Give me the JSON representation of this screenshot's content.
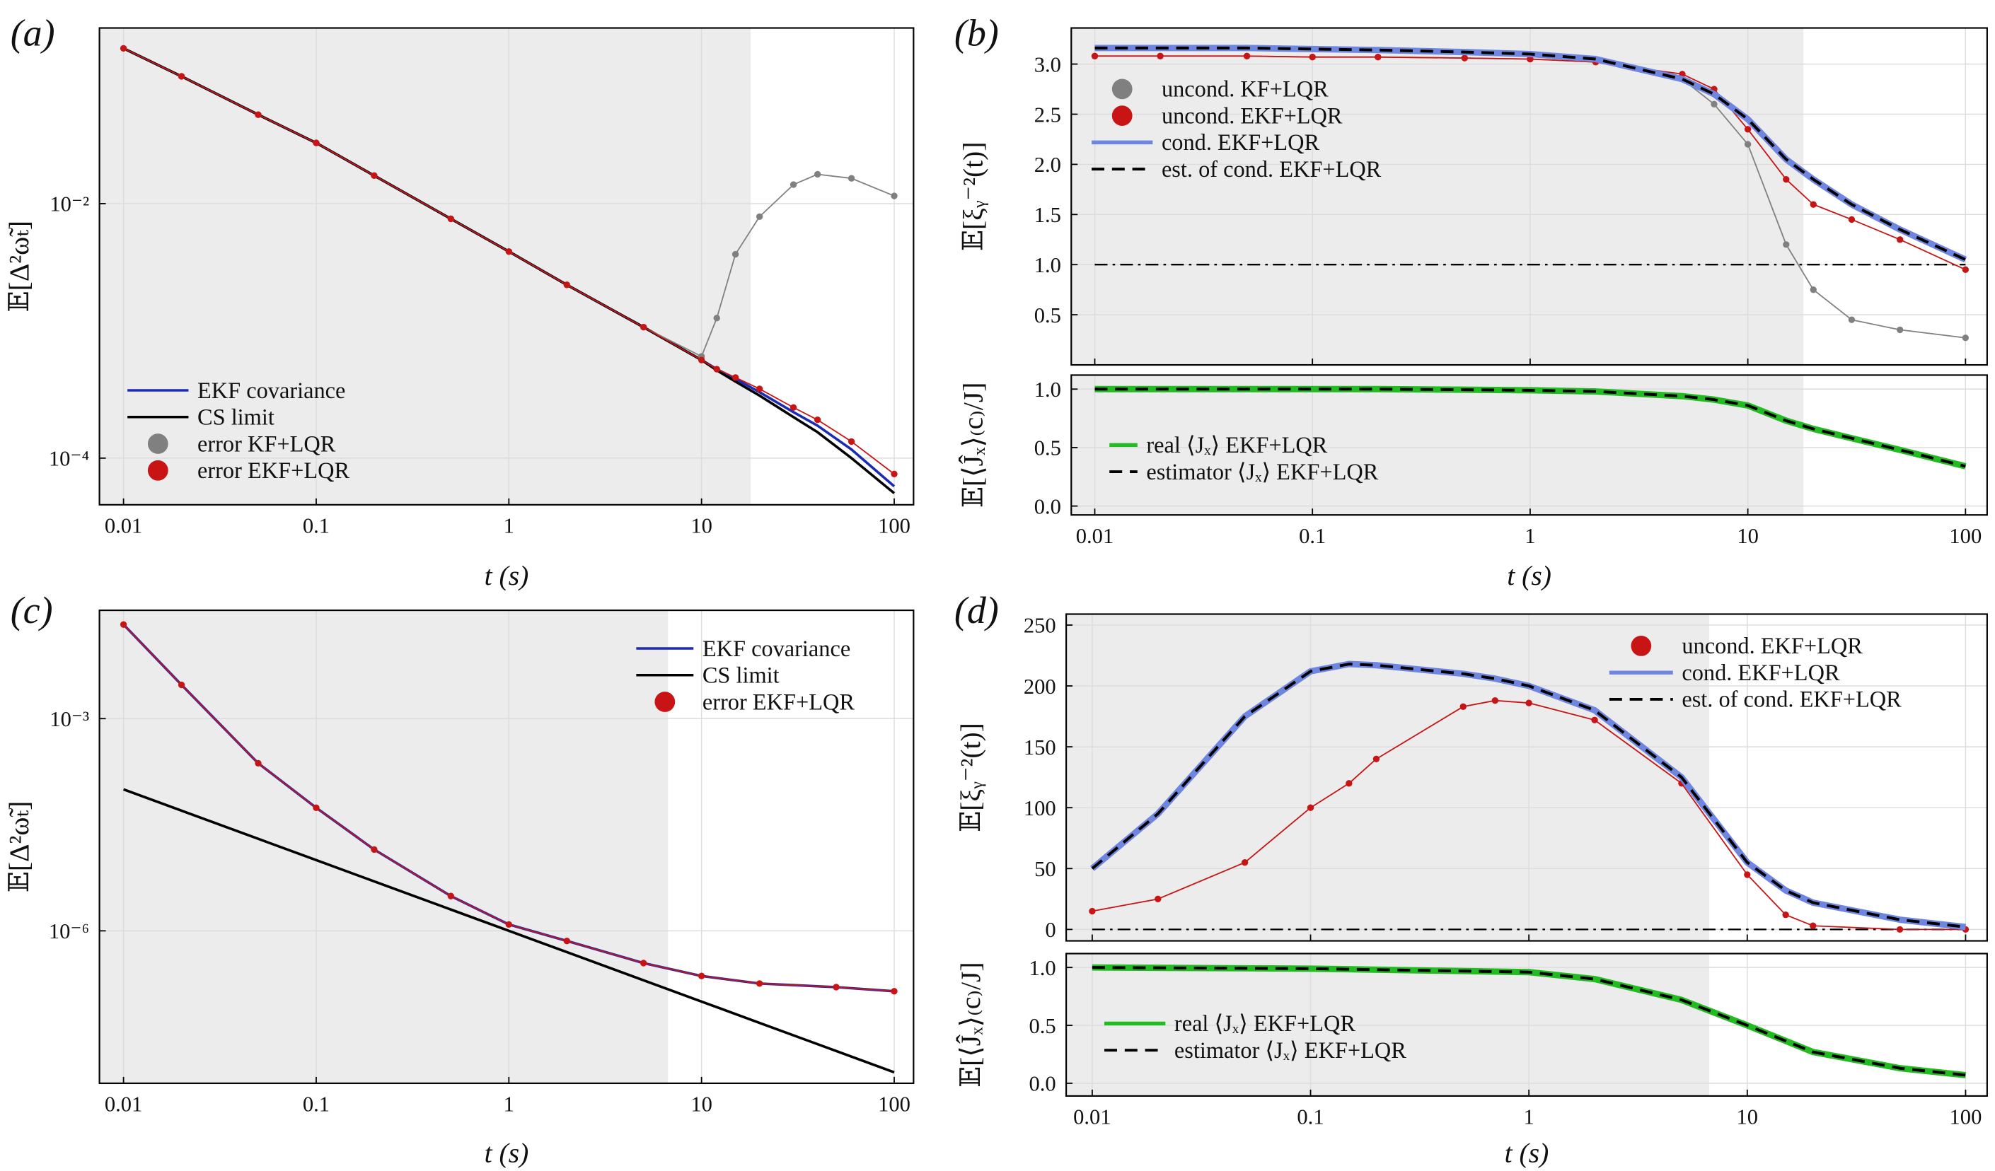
{
  "chart_data": [
    {
      "type": "line",
      "panel": "(a)",
      "xlog": true,
      "ylog": true,
      "grid": true,
      "shade_until": 18,
      "xlabel": "t (s)",
      "ylabel": "𝔼[Δ²ω̃ₜ]",
      "legend": "lower left",
      "xlim": [
        0.0075,
        126
      ],
      "ylim": [
        4.3e-05,
        0.24
      ],
      "xticks": [
        0.01,
        0.1,
        1,
        10,
        100
      ],
      "yticks": [
        {
          "value": 0.01,
          "label": "10⁻²"
        },
        {
          "value": 0.0001,
          "label": "10⁻⁴"
        }
      ],
      "x": [
        0.01,
        0.02,
        0.05,
        0.1,
        0.2,
        0.5,
        1,
        2,
        5,
        10,
        12,
        15,
        20,
        30,
        40,
        60,
        100
      ],
      "series": [
        {
          "name": "EKF covariance",
          "color": "#1c2bb5",
          "style": "line",
          "values": [
            0.166,
            0.1,
            0.05,
            0.03,
            0.0166,
            0.0076,
            0.0042,
            0.0023,
            0.00107,
            0.00059,
            0.0005,
            0.00042,
            0.00033,
            0.00023,
            0.00018,
            0.000117,
            6e-05
          ]
        },
        {
          "name": "CS limit",
          "color": "#000000",
          "style": "line",
          "values": [
            0.166,
            0.1,
            0.05,
            0.03,
            0.0166,
            0.0076,
            0.0042,
            0.0023,
            0.00107,
            0.00059,
            0.00049,
            0.0004,
            0.00031,
            0.00021,
            0.00016,
            0.0001,
            5.3e-05
          ]
        },
        {
          "name": "error KF+LQR",
          "color": "#808080",
          "style": "markers",
          "values": [
            0.166,
            0.1,
            0.05,
            0.03,
            0.0166,
            0.0076,
            0.0042,
            0.0023,
            0.00107,
            0.00063,
            0.00126,
            0.004,
            0.0079,
            0.0141,
            0.017,
            0.0158,
            0.0115
          ]
        },
        {
          "name": "error EKF+LQR",
          "color": "#c81414",
          "style": "markers",
          "values": [
            0.166,
            0.1,
            0.05,
            0.03,
            0.0166,
            0.0076,
            0.0042,
            0.0023,
            0.00107,
            0.00059,
            0.0005,
            0.00043,
            0.00035,
            0.00025,
            0.0002,
            0.000135,
            7.5e-05
          ]
        }
      ]
    },
    {
      "type": "line",
      "panel": "(b)",
      "xlog": true,
      "ylog": false,
      "grid": true,
      "shade_until": 18,
      "ylabel": "𝔼[ξᵧ⁻²(t)]",
      "legend": "upper left",
      "hline": 1,
      "xlim": [
        0.0078,
        125.7
      ],
      "ylim": [
        0,
        3.36
      ],
      "xticks": [
        0.01,
        0.1,
        1,
        10,
        100
      ],
      "yticks": [
        {
          "value": 3,
          "label": "3.0"
        },
        2.5,
        {
          "value": 2,
          "label": "2.0"
        },
        1.5,
        {
          "value": 1,
          "label": "1.0"
        },
        0.5
      ],
      "x": [
        0.01,
        0.02,
        0.05,
        0.1,
        0.2,
        0.5,
        1,
        2,
        5,
        7,
        10,
        15,
        20,
        30,
        50,
        100
      ],
      "series": [
        {
          "name": "uncond. KF+LQR",
          "color": "#808080",
          "style": "markers",
          "values": [
            3.08,
            3.08,
            3.08,
            3.07,
            3.07,
            3.06,
            3.05,
            3.02,
            2.85,
            2.6,
            2.2,
            1.2,
            0.75,
            0.45,
            0.35,
            0.27
          ]
        },
        {
          "name": "uncond. EKF+LQR",
          "color": "#c81414",
          "style": "markers",
          "values": [
            3.08,
            3.08,
            3.08,
            3.07,
            3.07,
            3.06,
            3.05,
            3.02,
            2.9,
            2.75,
            2.35,
            1.85,
            1.6,
            1.45,
            1.25,
            0.95
          ]
        },
        {
          "name": "cond. EKF+LQR",
          "color": "#6f86e0",
          "style": "thick",
          "values": [
            3.16,
            3.16,
            3.16,
            3.15,
            3.14,
            3.12,
            3.1,
            3.05,
            2.85,
            2.7,
            2.45,
            2.05,
            1.85,
            1.6,
            1.35,
            1.05
          ]
        },
        {
          "name": "est. of cond. EKF+LQR",
          "color": "#000000",
          "style": "dashed",
          "values": [
            3.16,
            3.16,
            3.16,
            3.15,
            3.14,
            3.12,
            3.1,
            3.05,
            2.85,
            2.7,
            2.45,
            2.05,
            1.85,
            1.6,
            1.35,
            1.05
          ]
        }
      ]
    },
    {
      "type": "line",
      "xlog": true,
      "ylog": false,
      "grid": true,
      "shade_until": 18,
      "xlabel": "t (s)",
      "ylabel": "𝔼[⟨Ĵₓ⟩₍c₎/J]",
      "legend": "lower left",
      "xlim": [
        0.0078,
        125.7
      ],
      "ylim": [
        -0.076,
        1.12
      ],
      "xticks": [
        0.01,
        0.1,
        1,
        10,
        100
      ],
      "yticks": [
        {
          "value": 0,
          "label": "0.0"
        },
        0.5,
        {
          "value": 1,
          "label": "1.0"
        }
      ],
      "x": [
        0.01,
        0.02,
        0.05,
        0.1,
        0.2,
        0.5,
        1,
        2,
        5,
        7,
        10,
        15,
        20,
        30,
        50,
        100
      ],
      "series": [
        {
          "name": "real ⟨Jₓ⟩ EKF+LQR",
          "color": "#22bb22",
          "style": "thick",
          "values": [
            1,
            1,
            1,
            1,
            1,
            0.995,
            0.99,
            0.98,
            0.94,
            0.91,
            0.86,
            0.73,
            0.66,
            0.58,
            0.48,
            0.34
          ]
        },
        {
          "name": "estimator ⟨Jₓ⟩ EKF+LQR",
          "color": "#000000",
          "style": "dashed",
          "values": [
            1,
            1,
            1,
            1,
            1,
            0.995,
            0.99,
            0.98,
            0.94,
            0.91,
            0.86,
            0.73,
            0.66,
            0.58,
            0.48,
            0.34
          ]
        }
      ]
    },
    {
      "type": "line",
      "panel": "(c)",
      "xlog": true,
      "ylog": true,
      "grid": true,
      "shade_until": 6.7,
      "xlabel": "t (s)",
      "ylabel": "𝔼[Δ²ω̃ₜ]",
      "legend": "upper right",
      "xlim": [
        0.0075,
        126
      ],
      "ylim": [
        7e-09,
        0.034
      ],
      "xticks": [
        0.01,
        0.1,
        1,
        10,
        100
      ],
      "yticks": [
        {
          "value": 0.001,
          "label": "10⁻³"
        },
        {
          "value": 1e-06,
          "label": "10⁻⁶"
        }
      ],
      "x": [
        0.01,
        0.02,
        0.05,
        0.1,
        0.2,
        0.5,
        1,
        2,
        5,
        10,
        20,
        50,
        100
      ],
      "series": [
        {
          "name": "EKF covariance",
          "color": "#1c2bb5",
          "style": "line",
          "values": [
            0.0214,
            0.003,
            0.000234,
            5.5e-05,
            1.41e-05,
            3.1e-06,
            1.23e-06,
            7.2e-07,
            3.5e-07,
            2.3e-07,
            1.8e-07,
            1.6e-07,
            1.4e-07
          ]
        },
        {
          "name": "CS limit",
          "color": "#000000",
          "style": "line",
          "values": [
            0.0001,
            5e-05,
            2e-05,
            1e-05,
            5e-06,
            2e-06,
            1e-06,
            5e-07,
            2e-07,
            1e-07,
            5e-08,
            2e-08,
            1e-08
          ]
        },
        {
          "name": "error EKF+LQR",
          "color": "#c81414",
          "style": "markers",
          "values": [
            0.0214,
            0.003,
            0.000234,
            5.5e-05,
            1.41e-05,
            3.1e-06,
            1.23e-06,
            7.2e-07,
            3.5e-07,
            2.3e-07,
            1.8e-07,
            1.6e-07,
            1.4e-07
          ]
        }
      ]
    },
    {
      "type": "line",
      "panel": "(d)",
      "xlog": true,
      "ylog": false,
      "grid": true,
      "shade_until": 6.7,
      "ylabel": "𝔼[ξᵧ⁻²(t)]",
      "legend": "upper right",
      "hline": 0,
      "xlim": [
        0.0076,
        125.5
      ],
      "ylim": [
        -9.4,
        259
      ],
      "xticks": [
        0.01,
        0.1,
        1,
        10,
        100
      ],
      "yticks": [
        0,
        50,
        100,
        150,
        200,
        250
      ],
      "x": [
        0.01,
        0.02,
        0.05,
        0.1,
        0.15,
        0.2,
        0.5,
        0.7,
        1,
        2,
        5,
        10,
        15,
        20,
        50,
        100
      ],
      "series": [
        {
          "name": "uncond. EKF+LQR",
          "color": "#c81414",
          "style": "markers",
          "values": [
            15,
            25,
            55,
            100,
            120,
            140,
            183,
            188,
            186,
            172,
            120,
            45,
            12,
            3,
            0,
            0
          ]
        },
        {
          "name": "cond. EKF+LQR",
          "color": "#6f86e0",
          "style": "thick",
          "values": [
            50,
            95,
            175,
            212,
            218,
            217,
            210,
            206,
            200,
            180,
            125,
            55,
            32,
            22,
            8,
            2
          ]
        },
        {
          "name": "est. of cond. EKF+LQR",
          "color": "#000000",
          "style": "dashed",
          "values": [
            50,
            95,
            175,
            212,
            218,
            217,
            210,
            206,
            200,
            180,
            125,
            55,
            32,
            22,
            8,
            2
          ]
        }
      ]
    },
    {
      "type": "line",
      "xlog": true,
      "ylog": false,
      "grid": true,
      "shade_until": 6.7,
      "xlabel": "t (s)",
      "ylabel": "𝔼[⟨Ĵₓ⟩₍c₎/J]",
      "legend": "lower left",
      "xlim": [
        0.0076,
        125.5
      ],
      "ylim": [
        -0.11,
        1.12
      ],
      "xticks": [
        0.01,
        0.1,
        1,
        10,
        100
      ],
      "yticks": [
        {
          "value": 0,
          "label": "0.0"
        },
        0.5,
        {
          "value": 1,
          "label": "1.0"
        }
      ],
      "x": [
        0.01,
        0.1,
        1,
        2,
        5,
        10,
        20,
        50,
        100
      ],
      "series": [
        {
          "name": "real ⟨Jₓ⟩ EKF+LQR",
          "color": "#22bb22",
          "style": "thick",
          "values": [
            1,
            0.99,
            0.96,
            0.9,
            0.72,
            0.5,
            0.27,
            0.13,
            0.07
          ]
        },
        {
          "name": "estimator ⟨Jₓ⟩ EKF+LQR",
          "color": "#000000",
          "style": "dashed",
          "values": [
            1,
            0.99,
            0.96,
            0.9,
            0.72,
            0.5,
            0.27,
            0.13,
            0.07
          ]
        }
      ]
    }
  ]
}
